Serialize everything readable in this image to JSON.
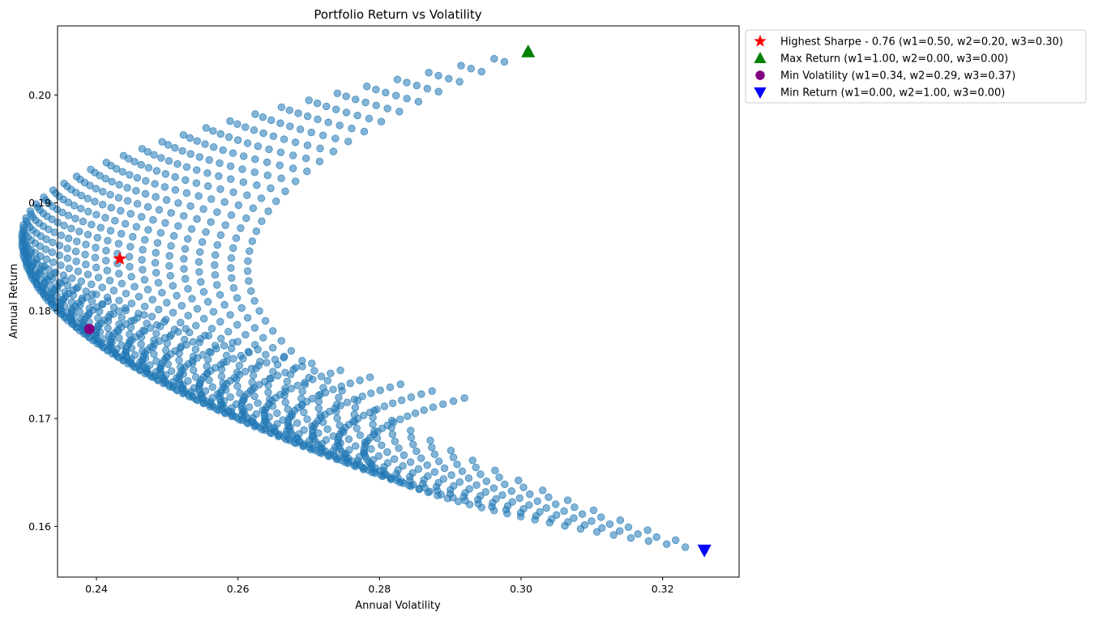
{
  "chart_data": {
    "type": "scatter",
    "title": "Portfolio Return vs Volatility",
    "xlabel": "Annual Volatility",
    "ylabel": "Annual Return",
    "xlim": [
      0.2345,
      0.3308
    ],
    "ylim": [
      0.1553,
      0.2064
    ],
    "xticks": [
      0.24,
      0.26,
      0.28,
      0.3,
      0.32
    ],
    "xtick_labels": [
      "0.24",
      "0.26",
      "0.28",
      "0.30",
      "0.32"
    ],
    "yticks": [
      0.16,
      0.17,
      0.18,
      0.19,
      0.2
    ],
    "ytick_labels": [
      "0.16",
      "0.17",
      "0.18",
      "0.19",
      "0.20"
    ],
    "grid": false,
    "legend_position": "outside-top-right",
    "scatter_color": "#1f77b4",
    "scatter_alpha": 0.55,
    "weight_step": 0.02,
    "assets": {
      "returns": [
        0.204,
        0.1578,
        0.1719
      ],
      "volatilities": [
        0.301,
        0.3259,
        0.292
      ]
    },
    "markers": [
      {
        "label": "Highest Sharpe - 0.76 (w1=0.50, w2=0.20, w3=0.30)",
        "x": 0.2433,
        "y": 0.1848,
        "shape": "star",
        "color": "#ff0000"
      },
      {
        "label": "Max Return (w1=1.00, w2=0.00, w3=0.00)",
        "x": 0.301,
        "y": 0.204,
        "shape": "triangle-up",
        "color": "#008000"
      },
      {
        "label": "Min Volatility (w1=0.34, w2=0.29, w3=0.37)",
        "x": 0.239,
        "y": 0.1783,
        "shape": "circle",
        "color": "#800080"
      },
      {
        "label": "Min Return (w1=0.00, w2=1.00, w3=0.00)",
        "x": 0.3259,
        "y": 0.1578,
        "shape": "triangle-down",
        "color": "#0000ff"
      }
    ]
  }
}
